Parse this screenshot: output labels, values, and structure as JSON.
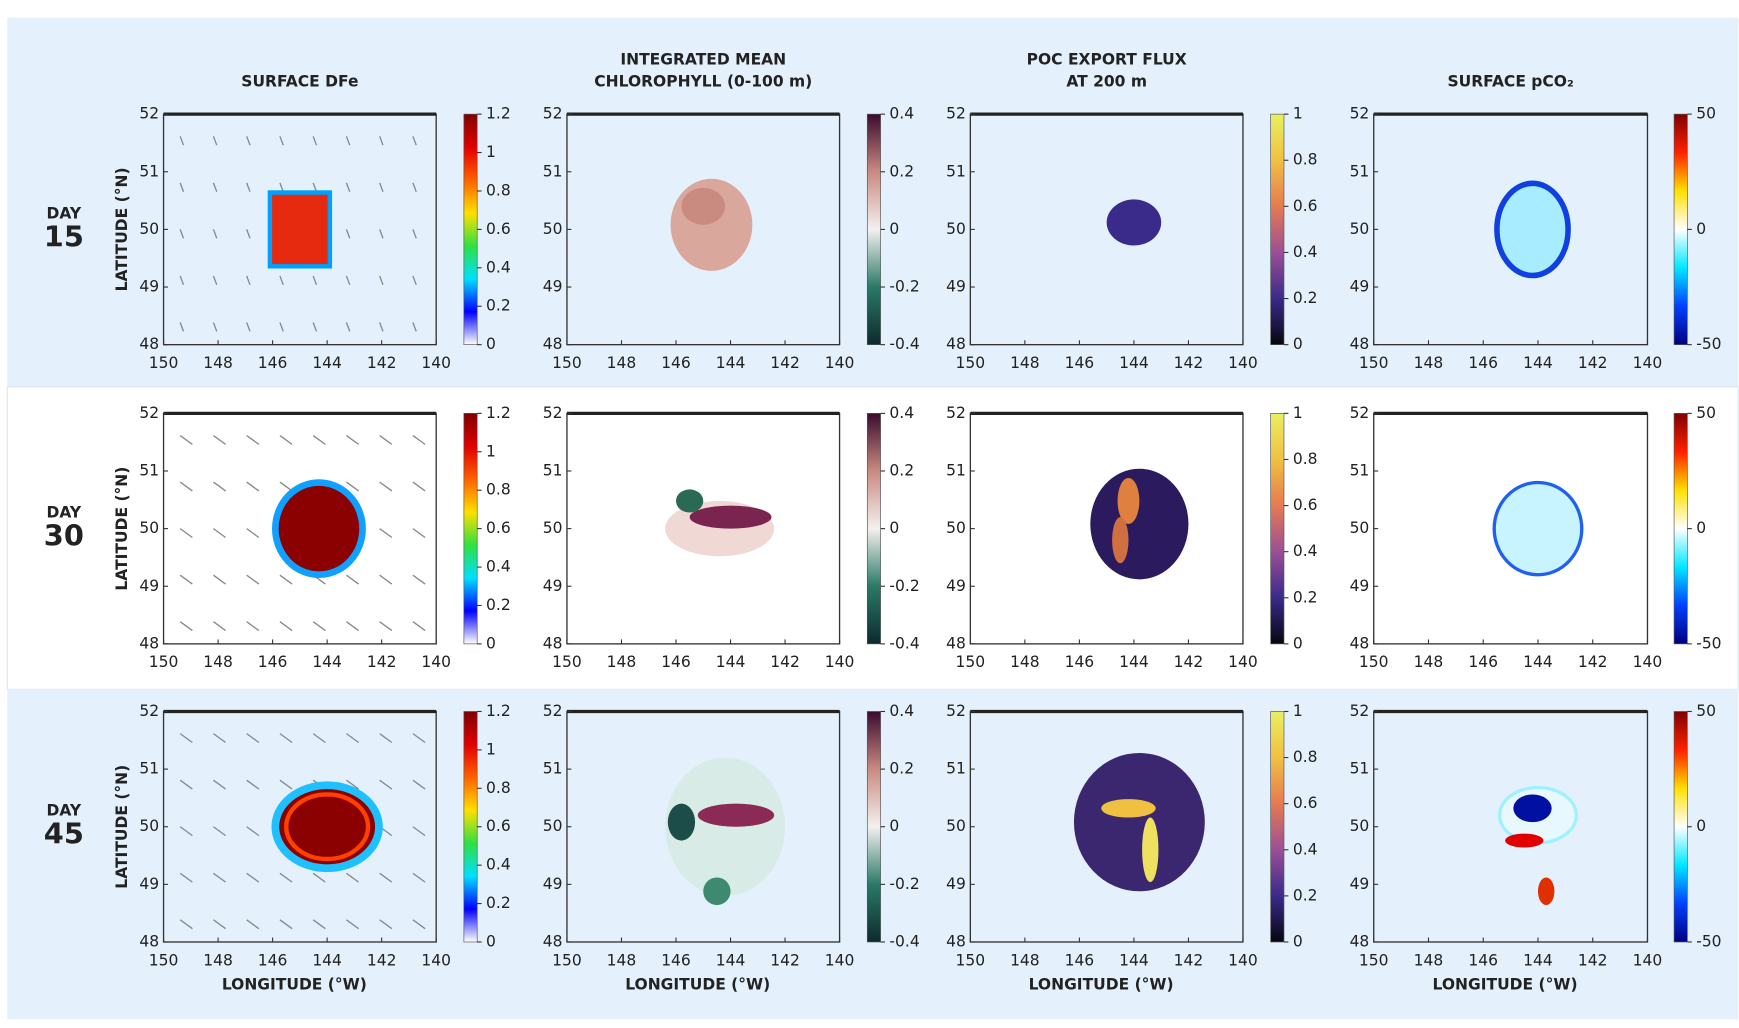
{
  "columns": [
    {
      "title": [
        "SURFACE DFe"
      ]
    },
    {
      "title": [
        "INTEGRATED MEAN",
        "CHLOROPHYLL (0-100 m)"
      ]
    },
    {
      "title": [
        "POC EXPORT FLUX",
        "AT 200 m"
      ]
    },
    {
      "title": [
        "SURFACE pCO₂"
      ]
    }
  ],
  "rows": [
    {
      "label": "DAY",
      "day": 15
    },
    {
      "label": "DAY",
      "day": 30
    },
    {
      "label": "DAY",
      "day": 45
    }
  ],
  "x_axis": {
    "label": "LONGITUDE (°W)",
    "lim": [
      150,
      140
    ],
    "ticks": [
      150,
      148,
      146,
      144,
      142,
      140
    ]
  },
  "y_axis": {
    "label": "LATITUDE (°N)",
    "lim": [
      48,
      52
    ],
    "ticks": [
      48,
      49,
      50,
      51,
      52
    ]
  },
  "colorbars": [
    {
      "lim": [
        0,
        1.2
      ],
      "ticks": [
        0,
        0.2,
        0.4,
        0.6,
        0.8,
        1,
        1.2
      ],
      "colors": [
        "#ffffff",
        "#0000ff",
        "#00e0ff",
        "#30e040",
        "#ffe000",
        "#ff6000",
        "#e00000",
        "#800000"
      ]
    },
    {
      "lim": [
        -0.4,
        0.4
      ],
      "ticks": [
        -0.4,
        -0.2,
        0,
        0.2,
        0.4
      ],
      "colors": [
        "#0d2a2e",
        "#2a7a66",
        "#f4f0ee",
        "#c98a80",
        "#3b0b2e"
      ]
    },
    {
      "lim": [
        0,
        1
      ],
      "ticks": [
        0,
        0.2,
        0.4,
        0.6,
        0.8,
        1
      ],
      "colors": [
        "#05070f",
        "#3a2a8a",
        "#9b4f96",
        "#e67a50",
        "#f1c040",
        "#e8f060"
      ]
    },
    {
      "lim": [
        -50,
        50
      ],
      "ticks": [
        -50,
        0,
        50
      ],
      "colors": [
        "#000080",
        "#0040ff",
        "#00e8ff",
        "#ffffff",
        "#ffe000",
        "#ff2000",
        "#800000"
      ]
    }
  ]
}
